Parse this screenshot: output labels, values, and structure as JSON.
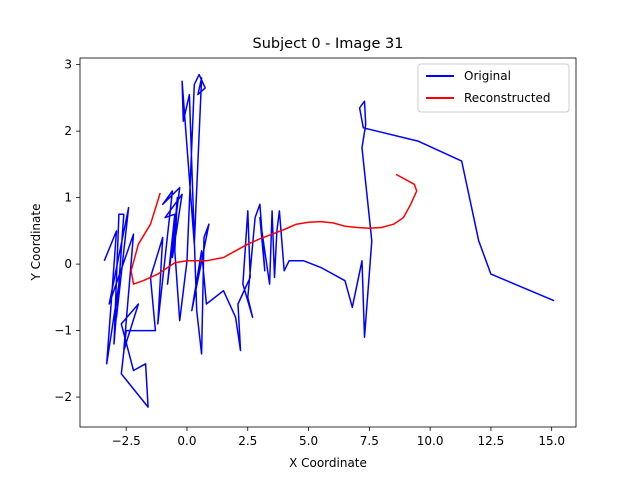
{
  "chart_data": {
    "type": "line",
    "title": "Subject 0 - Image 31",
    "xlabel": "X Coordinate",
    "ylabel": "Y Coordinate",
    "xlim": [
      -4.4,
      16.0
    ],
    "ylim": [
      -2.45,
      3.1
    ],
    "xticks": [
      -2.5,
      0.0,
      2.5,
      5.0,
      7.5,
      10.0,
      12.5,
      15.0
    ],
    "xtick_labels": [
      "−2.5",
      "0.0",
      "2.5",
      "5.0",
      "7.5",
      "10.0",
      "12.5",
      "15.0"
    ],
    "yticks": [
      -2,
      -1,
      0,
      1,
      2,
      3
    ],
    "ytick_labels": [
      "−2",
      "−1",
      "0",
      "1",
      "2",
      "3"
    ],
    "grid": false,
    "legend_position": "upper right",
    "series": [
      {
        "name": "Original",
        "color": "#0000ff",
        "points": [
          [
            -3.4,
            0.05
          ],
          [
            -2.9,
            0.5
          ],
          [
            -3.3,
            -1.5
          ],
          [
            -2.8,
            -0.3
          ],
          [
            -3.0,
            -1.2
          ],
          [
            -2.8,
            0.75
          ],
          [
            -2.6,
            0.75
          ],
          [
            -2.9,
            -0.8
          ],
          [
            -2.4,
            0.85
          ],
          [
            -3.2,
            -0.6
          ],
          [
            -2.2,
            0.45
          ],
          [
            -2.6,
            -1.3
          ],
          [
            -2.0,
            -0.6
          ],
          [
            -2.7,
            -0.9
          ],
          [
            -2.2,
            -1.6
          ],
          [
            -1.7,
            -1.5
          ],
          [
            -1.6,
            -2.15
          ],
          [
            -2.7,
            -1.65
          ],
          [
            -2.5,
            -1.0
          ],
          [
            -1.3,
            -1.0
          ],
          [
            -1.5,
            -0.2
          ],
          [
            -1.0,
            0.4
          ],
          [
            -1.2,
            -0.9
          ],
          [
            -0.6,
            1.1
          ],
          [
            -1.0,
            0.9
          ],
          [
            -0.3,
            1.15
          ],
          [
            -0.8,
            -0.3
          ],
          [
            -0.5,
            0.75
          ],
          [
            -0.9,
            0.7
          ],
          [
            -0.2,
            1.05
          ],
          [
            -0.6,
            0.1
          ],
          [
            -0.4,
            1.0
          ],
          [
            -0.5,
            0.2
          ],
          [
            -0.3,
            -0.85
          ],
          [
            0.0,
            0.05
          ],
          [
            0.3,
            2.7
          ],
          [
            0.5,
            2.85
          ],
          [
            0.75,
            2.65
          ],
          [
            0.45,
            2.55
          ],
          [
            0.6,
            2.8
          ],
          [
            0.3,
            0.3
          ],
          [
            -0.2,
            2.75
          ],
          [
            -0.15,
            2.15
          ],
          [
            0.1,
            2.55
          ],
          [
            0.4,
            -0.7
          ],
          [
            0.6,
            -1.35
          ],
          [
            0.7,
            0.4
          ],
          [
            0.9,
            0.6
          ],
          [
            0.2,
            -0.7
          ],
          [
            0.6,
            0.2
          ],
          [
            0.8,
            -0.6
          ],
          [
            1.5,
            -0.4
          ],
          [
            2.0,
            -0.8
          ],
          [
            2.2,
            -1.3
          ],
          [
            2.1,
            -0.6
          ],
          [
            2.6,
            -0.2
          ],
          [
            2.5,
            0.8
          ],
          [
            2.3,
            -0.3
          ],
          [
            2.7,
            -0.8
          ],
          [
            2.5,
            -0.5
          ],
          [
            2.8,
            0.7
          ],
          [
            3.0,
            0.9
          ],
          [
            3.2,
            -0.1
          ],
          [
            3.0,
            0.7
          ],
          [
            3.4,
            -0.3
          ],
          [
            3.5,
            0.8
          ],
          [
            3.6,
            -0.2
          ],
          [
            3.7,
            0.5
          ],
          [
            3.8,
            0.8
          ],
          [
            4.0,
            -0.1
          ],
          [
            4.2,
            0.05
          ],
          [
            4.8,
            0.05
          ],
          [
            5.5,
            -0.05
          ],
          [
            6.5,
            -0.25
          ],
          [
            6.8,
            -0.65
          ],
          [
            7.2,
            0.05
          ],
          [
            7.3,
            -1.1
          ],
          [
            7.6,
            0.35
          ],
          [
            7.2,
            1.75
          ],
          [
            7.35,
            2.1
          ],
          [
            7.3,
            2.45
          ],
          [
            7.1,
            2.35
          ],
          [
            7.25,
            2.05
          ],
          [
            9.5,
            1.85
          ],
          [
            11.3,
            1.55
          ],
          [
            12.0,
            0.35
          ],
          [
            12.5,
            -0.15
          ],
          [
            15.1,
            -0.55
          ]
        ]
      },
      {
        "name": "Reconstructed",
        "color": "#ff0000",
        "points": [
          [
            -1.1,
            1.07
          ],
          [
            -1.5,
            0.6
          ],
          [
            -2.0,
            0.3
          ],
          [
            -2.3,
            -0.1
          ],
          [
            -2.2,
            -0.3
          ],
          [
            -1.8,
            -0.25
          ],
          [
            -1.2,
            -0.15
          ],
          [
            -0.5,
            0.02
          ],
          [
            0.0,
            0.05
          ],
          [
            0.8,
            0.05
          ],
          [
            1.5,
            0.1
          ],
          [
            2.0,
            0.2
          ],
          [
            2.5,
            0.3
          ],
          [
            3.0,
            0.38
          ],
          [
            3.5,
            0.45
          ],
          [
            4.0,
            0.52
          ],
          [
            4.5,
            0.6
          ],
          [
            5.0,
            0.63
          ],
          [
            5.5,
            0.64
          ],
          [
            6.0,
            0.62
          ],
          [
            6.5,
            0.57
          ],
          [
            7.0,
            0.55
          ],
          [
            7.5,
            0.54
          ],
          [
            8.0,
            0.55
          ],
          [
            8.5,
            0.6
          ],
          [
            8.9,
            0.7
          ],
          [
            9.2,
            0.9
          ],
          [
            9.45,
            1.1
          ],
          [
            9.35,
            1.2
          ],
          [
            8.6,
            1.35
          ]
        ]
      }
    ]
  }
}
